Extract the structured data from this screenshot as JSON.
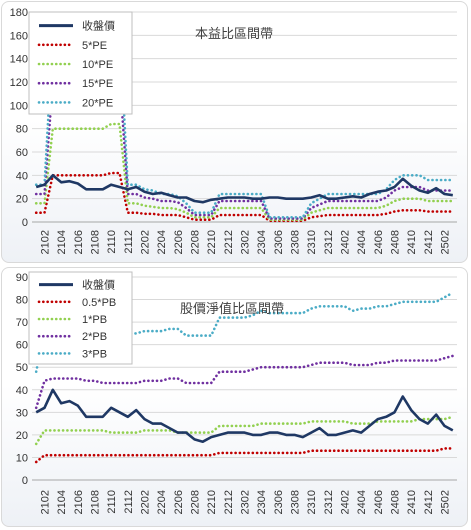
{
  "chart_data": [
    {
      "type": "line",
      "title": "本益比區間帶",
      "xlabel": "",
      "ylabel": "",
      "ylim": [
        0,
        180
      ],
      "yticks": [
        0,
        20,
        40,
        60,
        80,
        100,
        120,
        140,
        160,
        180
      ],
      "x_ticks": [
        "2102",
        "2104",
        "2106",
        "2108",
        "2110",
        "2112",
        "2202",
        "2204",
        "2206",
        "2208",
        "2210",
        "2212",
        "2302",
        "2304",
        "2306",
        "2308",
        "2310",
        "2312",
        "2402",
        "2404",
        "2406",
        "2408",
        "2410",
        "2412",
        "2502"
      ],
      "x_months": [
        "2101",
        "2102",
        "2103",
        "2104",
        "2105",
        "2106",
        "2107",
        "2108",
        "2109",
        "2110",
        "2111",
        "2112",
        "2201",
        "2202",
        "2203",
        "2204",
        "2205",
        "2206",
        "2207",
        "2208",
        "2209",
        "2210",
        "2211",
        "2212",
        "2301",
        "2302",
        "2303",
        "2304",
        "2305",
        "2306",
        "2307",
        "2308",
        "2309",
        "2310",
        "2311",
        "2312",
        "2401",
        "2402",
        "2403",
        "2404",
        "2405",
        "2406",
        "2407",
        "2408",
        "2409",
        "2410",
        "2411",
        "2412",
        "2501",
        "2502",
        "2503"
      ],
      "legend_position": "top-left",
      "grid": true,
      "series": [
        {
          "name": "收盤價",
          "color": "#1f3864",
          "style": "solid",
          "values": [
            30,
            32,
            40,
            34,
            35,
            33,
            28,
            28,
            28,
            32,
            30,
            28,
            30,
            26,
            24,
            25,
            23,
            21,
            21,
            18,
            17,
            19,
            20,
            21,
            21,
            21,
            20,
            20,
            21,
            21,
            20,
            20,
            20,
            21,
            23,
            20,
            20,
            21,
            22,
            21,
            24,
            26,
            27,
            30,
            37,
            31,
            27,
            25,
            29,
            24,
            23
          ]
        },
        {
          "name": "5*PE",
          "color": "#c00000",
          "style": "dotted",
          "values": [
            8,
            8,
            40,
            40,
            40,
            40,
            40,
            40,
            40,
            42,
            42,
            8,
            8,
            7,
            7,
            6,
            6,
            6,
            4,
            2,
            2,
            2,
            6,
            6,
            6,
            6,
            6,
            6,
            1,
            1,
            1,
            1,
            1,
            4,
            5,
            6,
            6,
            6,
            6,
            6,
            6,
            6,
            7,
            9,
            10,
            10,
            10,
            9,
            9,
            9,
            9
          ]
        },
        {
          "name": "10*PE",
          "color": "#92d050",
          "style": "dotted",
          "values": [
            16,
            16,
            80,
            80,
            80,
            80,
            80,
            80,
            80,
            84,
            84,
            16,
            16,
            14,
            13,
            12,
            12,
            11,
            8,
            4,
            4,
            4,
            12,
            12,
            12,
            12,
            12,
            12,
            2,
            2,
            2,
            2,
            2,
            8,
            10,
            12,
            12,
            12,
            12,
            12,
            12,
            12,
            14,
            18,
            20,
            20,
            20,
            18,
            18,
            18,
            18
          ]
        },
        {
          "name": "15*PE",
          "color": "#7030a0",
          "style": "dotted",
          "values": [
            24,
            24,
            120,
            120,
            120,
            120,
            120,
            120,
            120,
            126,
            126,
            24,
            24,
            21,
            20,
            18,
            18,
            17,
            12,
            6,
            6,
            6,
            18,
            18,
            18,
            18,
            18,
            18,
            3,
            3,
            3,
            3,
            3,
            12,
            15,
            18,
            18,
            18,
            18,
            18,
            18,
            18,
            21,
            27,
            30,
            30,
            30,
            27,
            27,
            27,
            27
          ]
        },
        {
          "name": "20*PE",
          "color": "#4bacc6",
          "style": "dotted",
          "values": [
            32,
            32,
            160,
            160,
            160,
            160,
            160,
            160,
            160,
            168,
            168,
            32,
            32,
            28,
            27,
            24,
            24,
            22,
            16,
            8,
            8,
            8,
            24,
            24,
            24,
            24,
            24,
            24,
            4,
            4,
            4,
            4,
            4,
            16,
            20,
            24,
            24,
            24,
            24,
            24,
            24,
            24,
            28,
            36,
            40,
            40,
            40,
            36,
            36,
            36,
            36
          ]
        }
      ]
    },
    {
      "type": "line",
      "title": "股價淨值比區間帶",
      "xlabel": "",
      "ylabel": "",
      "ylim": [
        0,
        90
      ],
      "yticks": [
        0,
        10,
        20,
        30,
        40,
        50,
        60,
        70,
        80,
        90
      ],
      "x_ticks": [
        "2102",
        "2104",
        "2106",
        "2108",
        "2110",
        "2112",
        "2202",
        "2204",
        "2206",
        "2208",
        "2210",
        "2212",
        "2302",
        "2304",
        "2306",
        "2308",
        "2310",
        "2312",
        "2402",
        "2404",
        "2406",
        "2408",
        "2410",
        "2412",
        "2502"
      ],
      "x_months": [
        "2101",
        "2102",
        "2103",
        "2104",
        "2105",
        "2106",
        "2107",
        "2108",
        "2109",
        "2110",
        "2111",
        "2112",
        "2201",
        "2202",
        "2203",
        "2204",
        "2205",
        "2206",
        "2207",
        "2208",
        "2209",
        "2210",
        "2211",
        "2212",
        "2301",
        "2302",
        "2303",
        "2304",
        "2305",
        "2306",
        "2307",
        "2308",
        "2309",
        "2310",
        "2311",
        "2312",
        "2401",
        "2402",
        "2403",
        "2404",
        "2405",
        "2406",
        "2407",
        "2408",
        "2409",
        "2410",
        "2411",
        "2412",
        "2501",
        "2502",
        "2503"
      ],
      "legend_position": "top-left",
      "grid": true,
      "series": [
        {
          "name": "收盤價",
          "color": "#1f3864",
          "style": "solid",
          "values": [
            30,
            32,
            40,
            34,
            35,
            33,
            28,
            28,
            28,
            32,
            30,
            28,
            31,
            27,
            25,
            25,
            23,
            21,
            21,
            18,
            17,
            19,
            20,
            21,
            21,
            21,
            20,
            20,
            21,
            21,
            20,
            20,
            19,
            21,
            23,
            20,
            20,
            21,
            22,
            21,
            24,
            27,
            28,
            30,
            37,
            31,
            27,
            25,
            29,
            24,
            22
          ]
        },
        {
          "name": "0.5*PB",
          "color": "#c00000",
          "style": "dotted",
          "values": [
            8,
            11,
            11,
            11,
            11,
            11,
            11,
            11,
            11,
            11,
            11,
            11,
            11,
            11,
            11,
            11,
            11,
            11,
            11,
            11,
            11,
            11,
            12,
            12,
            12,
            12,
            12,
            12,
            12,
            12,
            12,
            12,
            12,
            13,
            13,
            13,
            13,
            13,
            13,
            13,
            13,
            13,
            13,
            13,
            13,
            13,
            13,
            13,
            13,
            14,
            14
          ]
        },
        {
          "name": "1*PB",
          "color": "#92d050",
          "style": "dotted",
          "values": [
            16,
            22,
            22,
            22,
            22,
            22,
            22,
            22,
            22,
            21,
            21,
            21,
            21,
            22,
            22,
            22,
            22,
            21,
            21,
            21,
            21,
            21,
            24,
            24,
            24,
            24,
            24,
            25,
            25,
            25,
            25,
            25,
            25,
            26,
            26,
            26,
            26,
            26,
            25,
            25,
            25,
            26,
            26,
            26,
            26,
            26,
            27,
            27,
            27,
            27,
            28
          ]
        },
        {
          "name": "2*PB",
          "color": "#7030a0",
          "style": "dotted",
          "values": [
            32,
            44,
            45,
            45,
            45,
            45,
            44,
            44,
            43,
            43,
            43,
            43,
            43,
            44,
            44,
            44,
            45,
            45,
            43,
            43,
            43,
            43,
            48,
            48,
            48,
            48,
            49,
            50,
            50,
            50,
            50,
            50,
            50,
            51,
            52,
            52,
            52,
            52,
            51,
            51,
            51,
            52,
            52,
            53,
            53,
            53,
            53,
            53,
            53,
            54,
            55
          ]
        },
        {
          "name": "3*PB",
          "color": "#4bacc6",
          "style": "dotted",
          "values": [
            48,
            66,
            67,
            67,
            67,
            67,
            66,
            66,
            65,
            65,
            65,
            65,
            65,
            66,
            66,
            66,
            67,
            67,
            64,
            64,
            64,
            64,
            72,
            72,
            72,
            72,
            73,
            75,
            74,
            74,
            74,
            74,
            74,
            76,
            77,
            77,
            77,
            77,
            75,
            76,
            76,
            77,
            77,
            78,
            79,
            79,
            79,
            79,
            79,
            81,
            83
          ]
        }
      ]
    }
  ]
}
